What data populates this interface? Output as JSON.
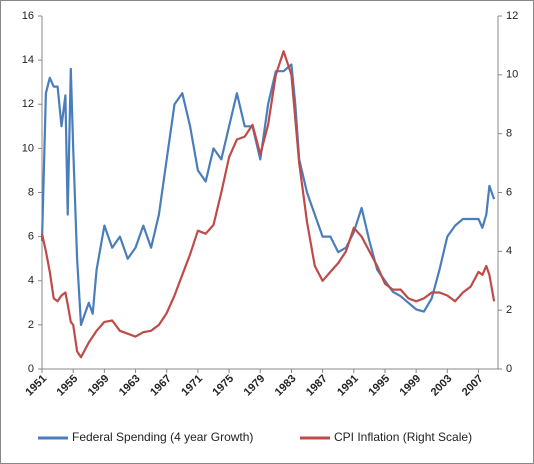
{
  "chart_data": {
    "type": "line",
    "x": [
      1951,
      1951.5,
      1952,
      1952.5,
      1953,
      1953.5,
      1954,
      1954.3,
      1954.7,
      1955,
      1955.5,
      1956,
      1957,
      1957.5,
      1958,
      1959,
      1960,
      1961,
      1962,
      1963,
      1964,
      1965,
      1966,
      1967,
      1968,
      1969,
      1970,
      1971,
      1972,
      1973,
      1974,
      1975,
      1976,
      1977,
      1978,
      1979,
      1980,
      1981,
      1982,
      1983,
      1983.5,
      1984,
      1985,
      1986,
      1987,
      1988,
      1989,
      1990,
      1991,
      1992,
      1993,
      1994,
      1995,
      1996,
      1997,
      1998,
      1999,
      2000,
      2001,
      2002,
      2003,
      2004,
      2005,
      2006,
      2007,
      2007.5,
      2008,
      2008.4,
      2009
    ],
    "series": [
      {
        "name": "Federal Spending (4 year Growth)",
        "color": "#4a7ebb",
        "values": [
          5.8,
          12.5,
          13.2,
          12.8,
          12.8,
          11,
          12.4,
          7,
          13.6,
          10,
          5,
          2,
          3,
          2.5,
          4.5,
          6.5,
          5.5,
          6,
          5,
          5.5,
          6.5,
          5.5,
          7,
          9.5,
          12,
          12.5,
          11,
          9,
          8.5,
          10,
          9.5,
          11,
          12.5,
          11,
          11,
          9.5,
          12,
          13.5,
          13.5,
          13.8,
          12,
          9.5,
          8,
          7,
          6,
          6,
          5.3,
          5.5,
          6.2,
          7.3,
          5.8,
          4.5,
          4,
          3.5,
          3.3,
          3,
          2.7,
          2.6,
          3.2,
          4.5,
          6,
          6.5,
          6.8,
          6.8,
          6.8,
          6.4,
          7,
          8.3,
          7.7
        ]
      },
      {
        "name": "CPI Inflation (Right Scale)",
        "color": "#be4b48",
        "axis": "y2",
        "values": [
          4.6,
          4,
          3.3,
          2.4,
          2.3,
          2.5,
          2.6,
          2.2,
          1.6,
          1.5,
          0.6,
          0.4,
          0.9,
          1.1,
          1.3,
          1.6,
          1.65,
          1.3,
          1.2,
          1.1,
          1.25,
          1.3,
          1.5,
          1.9,
          2.5,
          3.2,
          3.9,
          4.7,
          4.6,
          4.9,
          6,
          7.2,
          7.8,
          7.9,
          8.3,
          7.3,
          8.3,
          10,
          10.8,
          10,
          8.5,
          7,
          5,
          3.5,
          3,
          3.3,
          3.6,
          4,
          4.8,
          4.5,
          4,
          3.5,
          2.9,
          2.7,
          2.7,
          2.4,
          2.3,
          2.4,
          2.6,
          2.6,
          2.5,
          2.3,
          2.6,
          2.8,
          3.3,
          3.2,
          3.5,
          3.2,
          2.3
        ]
      }
    ],
    "xlim": [
      1951,
      2009.5
    ],
    "xticks": [
      1951,
      1955,
      1959,
      1963,
      1967,
      1971,
      1975,
      1979,
      1983,
      1987,
      1991,
      1995,
      1999,
      2003,
      2007
    ],
    "ylim": [
      0,
      16
    ],
    "yticks": [
      0,
      2,
      4,
      6,
      8,
      10,
      12,
      14,
      16
    ],
    "y2lim": [
      0,
      12
    ],
    "y2ticks": [
      0,
      2,
      4,
      6,
      8,
      10,
      12
    ]
  }
}
